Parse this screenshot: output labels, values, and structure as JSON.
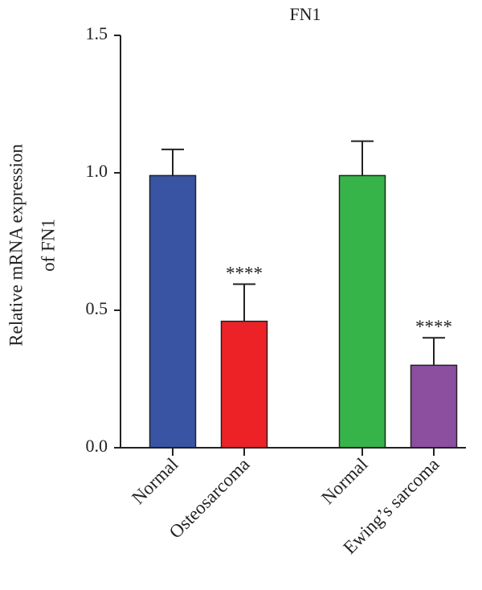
{
  "chart_data": {
    "type": "bar",
    "title": "FN1",
    "ylabel_lines": [
      "Relative mRNA expression",
      "of FN1"
    ],
    "xlabel": "",
    "ylim": [
      0,
      1.5
    ],
    "yticks": [
      "0.0",
      "0.5",
      "1.0",
      "1.5"
    ],
    "grid": false,
    "legend": "none",
    "categories": [
      "Normal",
      "Osteosarcoma",
      "Normal",
      "Ewing’s sarcoma"
    ],
    "values": [
      0.99,
      0.46,
      0.99,
      0.3
    ],
    "error_upper": [
      0.095,
      0.135,
      0.125,
      0.1
    ],
    "colors": [
      "#3a54a4",
      "#ec2227",
      "#36b44a",
      "#8c4fa0"
    ],
    "significance": [
      "",
      "****",
      "",
      "****"
    ]
  }
}
